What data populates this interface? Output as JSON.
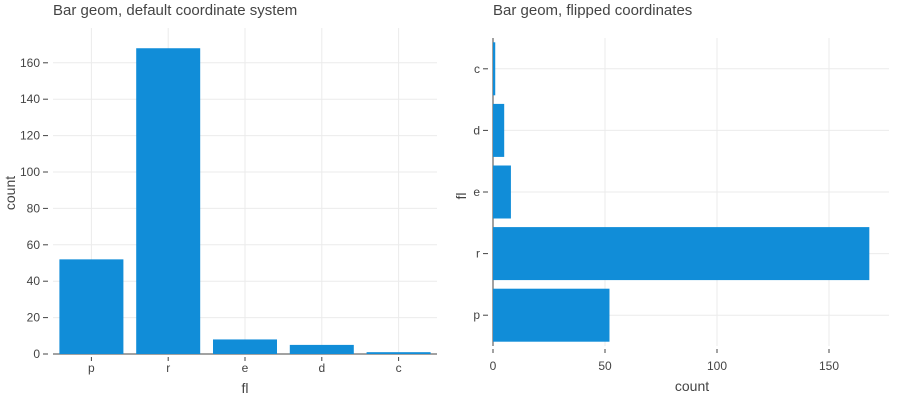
{
  "chart_data": [
    {
      "type": "bar",
      "title": "Bar geom, default coordinate system",
      "xlabel": "fl",
      "ylabel": "count",
      "categories": [
        "p",
        "r",
        "e",
        "d",
        "c"
      ],
      "values": [
        52,
        168,
        8,
        5,
        1
      ],
      "ylim": [
        0,
        170
      ],
      "yticks": [
        0,
        20,
        40,
        60,
        80,
        100,
        120,
        140,
        160
      ],
      "orientation": "vertical",
      "bar_color": "#118dd8",
      "grid": true
    },
    {
      "type": "bar",
      "title": "Bar geom, flipped coordinates",
      "xlabel": "count",
      "ylabel": "fl",
      "categories": [
        "p",
        "r",
        "e",
        "d",
        "c"
      ],
      "values": [
        52,
        168,
        8,
        5,
        1
      ],
      "xlim": [
        0,
        177
      ],
      "xticks": [
        0,
        50,
        100,
        150
      ],
      "orientation": "horizontal",
      "bar_color": "#118dd8",
      "grid": true
    }
  ]
}
